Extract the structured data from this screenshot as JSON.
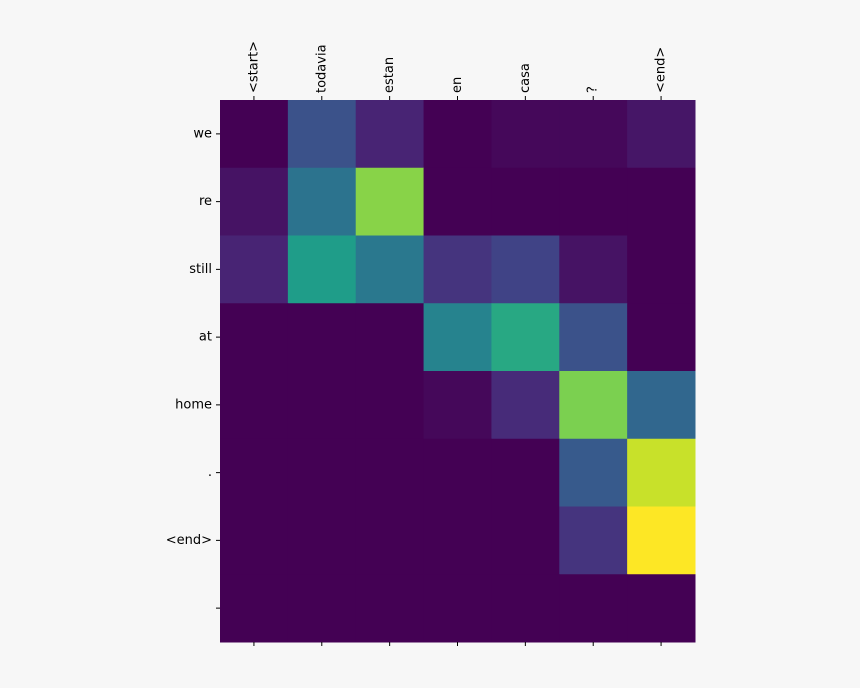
{
  "chart_data": {
    "type": "heatmap",
    "x_categories": [
      "<start>",
      "todavia",
      "estan",
      "en",
      "casa",
      "?",
      "<end>"
    ],
    "y_categories": [
      "we",
      "re",
      "still",
      "at",
      "home",
      ".",
      "<end>",
      null
    ],
    "colormap": "viridis",
    "values": [
      [
        0.0,
        0.25,
        0.1,
        0.0,
        0.02,
        0.02,
        0.06
      ],
      [
        0.05,
        0.38,
        0.82,
        0.0,
        0.0,
        0.0,
        0.0
      ],
      [
        0.1,
        0.55,
        0.4,
        0.15,
        0.2,
        0.05,
        0.0
      ],
      [
        0.0,
        0.0,
        0.0,
        0.45,
        0.6,
        0.25,
        0.0
      ],
      [
        0.0,
        0.0,
        0.0,
        0.02,
        0.12,
        0.8,
        0.33
      ],
      [
        0.0,
        0.0,
        0.0,
        0.0,
        0.0,
        0.28,
        0.92
      ],
      [
        0.0,
        0.0,
        0.0,
        0.0,
        0.0,
        0.15,
        1.0
      ],
      [
        0.0,
        0.0,
        0.0,
        0.0,
        0.0,
        0.0,
        0.0
      ]
    ]
  }
}
